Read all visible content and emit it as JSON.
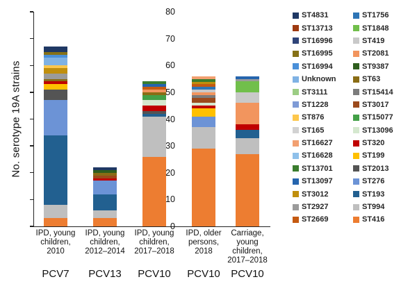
{
  "figure": {
    "y_axis_label": "No. serotype 19A strains"
  },
  "chart_data": {
    "type": "bar",
    "stacked": true,
    "title": "",
    "xlabel": "",
    "ylabel": "No. serotype 19A strains",
    "ylim": [
      0,
      80
    ],
    "yticks": [
      0,
      10,
      20,
      30,
      40,
      50,
      60,
      70,
      80
    ],
    "grid": false,
    "legend_position": "right",
    "categories": [
      "IPD, young children, 2010",
      "IPD, young children, 2012–2014",
      "IPD, young children, 2017–2018",
      "IPD, older persons, 2018",
      "Carriage, young children, 2017–2018"
    ],
    "totals": [
      67,
      22,
      54,
      56,
      56
    ],
    "bars": [
      {
        "category_lines": [
          "IPD, young",
          "children,",
          "2010"
        ],
        "group_label": "PCV7",
        "segments": [
          {
            "st": "ST416",
            "value": 3
          },
          {
            "st": "ST994",
            "value": 5
          },
          {
            "st": "ST193",
            "value": 26
          },
          {
            "st": "ST276",
            "value": 13
          },
          {
            "st": "ST2013",
            "value": 4
          },
          {
            "st": "ST199",
            "value": 2
          },
          {
            "st": "ST320",
            "value": 1
          },
          {
            "st": "ST63",
            "value": 1
          },
          {
            "st": "ST2927",
            "value": 2
          },
          {
            "st": "ST3012",
            "value": 2
          },
          {
            "st": "ST876",
            "value": 1
          },
          {
            "st": "Unknown",
            "value": 3
          },
          {
            "st": "ST16994",
            "value": 1
          },
          {
            "st": "ST16995",
            "value": 1
          },
          {
            "st": "ST4831",
            "value": 2
          }
        ]
      },
      {
        "category_lines": [
          "IPD, young",
          "children,",
          "2012–2014"
        ],
        "group_label": "PCV13",
        "segments": [
          {
            "st": "ST416",
            "value": 3
          },
          {
            "st": "ST994",
            "value": 3
          },
          {
            "st": "ST193",
            "value": 6
          },
          {
            "st": "ST276",
            "value": 5
          },
          {
            "st": "ST320",
            "value": 1
          },
          {
            "st": "ST3017",
            "value": 1
          },
          {
            "st": "ST63",
            "value": 1
          },
          {
            "st": "ST9387",
            "value": 1
          },
          {
            "st": "ST4831",
            "value": 1
          }
        ]
      },
      {
        "category_lines": [
          "IPD, young",
          "children,",
          "2017–2018"
        ],
        "group_label": "PCV10",
        "segments": [
          {
            "st": "ST416",
            "value": 26
          },
          {
            "st": "ST994",
            "value": 15
          },
          {
            "st": "ST193",
            "value": 1
          },
          {
            "st": "ST2013",
            "value": 1
          },
          {
            "st": "ST320",
            "value": 2
          },
          {
            "st": "ST13096",
            "value": 2
          },
          {
            "st": "ST15077",
            "value": 2
          },
          {
            "st": "ST63",
            "value": 1
          },
          {
            "st": "ST2081",
            "value": 1
          },
          {
            "st": "ST2669",
            "value": 1
          },
          {
            "st": "ST13097",
            "value": 1
          },
          {
            "st": "ST13701",
            "value": 1
          }
        ]
      },
      {
        "category_lines": [
          "IPD, older",
          "persons,",
          "2018"
        ],
        "group_label": "PCV10",
        "segments": [
          {
            "st": "ST416",
            "value": 29
          },
          {
            "st": "ST994",
            "value": 8
          },
          {
            "st": "ST276",
            "value": 4
          },
          {
            "st": "ST199",
            "value": 3
          },
          {
            "st": "ST320",
            "value": 1
          },
          {
            "st": "ST13096",
            "value": 1
          },
          {
            "st": "ST3017",
            "value": 2
          },
          {
            "st": "ST15414",
            "value": 1
          },
          {
            "st": "ST2081",
            "value": 1
          },
          {
            "st": "ST419",
            "value": 1
          },
          {
            "st": "ST1756",
            "value": 1
          },
          {
            "st": "ST2669",
            "value": 1
          },
          {
            "st": "ST3012",
            "value": 1
          },
          {
            "st": "ST13701",
            "value": 1
          },
          {
            "st": "ST16627",
            "value": 1
          }
        ]
      },
      {
        "category_lines": [
          "Carriage,",
          "young",
          "children,",
          "2017–2018"
        ],
        "group_label": "PCV10",
        "segments": [
          {
            "st": "ST416",
            "value": 27
          },
          {
            "st": "ST994",
            "value": 6
          },
          {
            "st": "ST193",
            "value": 3
          },
          {
            "st": "ST320",
            "value": 2
          },
          {
            "st": "ST2081",
            "value": 8
          },
          {
            "st": "ST419",
            "value": 4
          },
          {
            "st": "ST1848",
            "value": 4
          },
          {
            "st": "ST2927",
            "value": 1
          },
          {
            "st": "ST13097",
            "value": 1
          }
        ]
      }
    ],
    "legend_columns": [
      [
        "ST4831",
        "ST13713",
        "ST16996",
        "ST16995",
        "ST16994",
        "Unknown",
        "ST3111",
        "ST1228",
        "ST876",
        "ST165",
        "ST16627",
        "ST16628",
        "ST13701",
        "ST13097",
        "ST3012",
        "ST2927",
        "ST2669"
      ],
      [
        "ST1756",
        "ST1848",
        "ST419",
        "ST2081",
        "ST9387",
        "ST63",
        "ST15414",
        "ST3017",
        "ST15077",
        "ST13096",
        "ST320",
        "ST199",
        "ST2013",
        "ST276",
        "ST193",
        "ST994",
        "ST416"
      ]
    ],
    "colors": {
      "ST4831": "#1F3864",
      "ST13713": "#9E3A10",
      "ST16996": "#2F4479",
      "ST16995": "#867117",
      "ST16994": "#4A90D9",
      "Unknown": "#7FB2E4",
      "ST3111": "#9CCD84",
      "ST1228": "#7F9BD6",
      "ST876": "#FDC74C",
      "ST165": "#D2D2D2",
      "ST16627": "#F2A071",
      "ST16628": "#8FC0EA",
      "ST13701": "#3A7D2E",
      "ST13097": "#2565AE",
      "ST3012": "#C08F0E",
      "ST2927": "#9B9B9B",
      "ST2669": "#C55A11",
      "ST1756": "#2E75B6",
      "ST1848": "#71BF4B",
      "ST419": "#C9C9C9",
      "ST2081": "#F2955E",
      "ST9387": "#2F5E1E",
      "ST63": "#8A6D15",
      "ST15414": "#7C7C7C",
      "ST3017": "#9C4A1C",
      "ST15077": "#43A047",
      "ST13096": "#D5E8CF",
      "ST320": "#C00000",
      "ST199": "#FFC000",
      "ST2013": "#545454",
      "ST276": "#6C93D6",
      "ST193": "#226090",
      "ST994": "#BFBFBF",
      "ST416": "#ED7D31"
    }
  }
}
